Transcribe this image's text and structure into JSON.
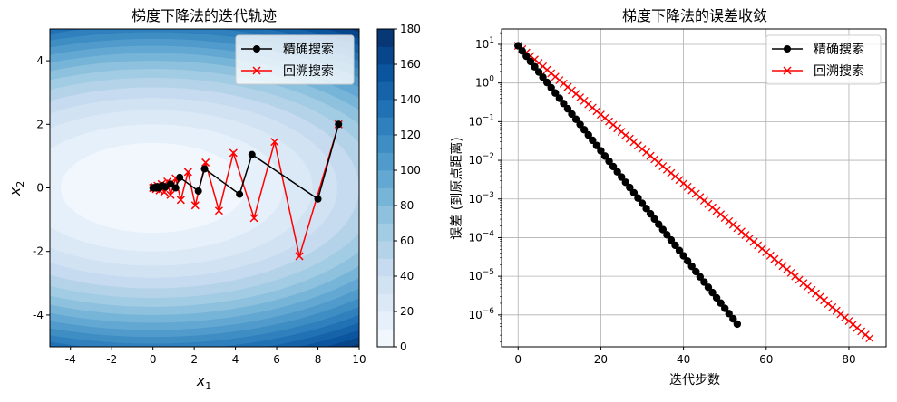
{
  "chart_data": [
    {
      "type": "contour",
      "title": "梯度下降法的迭代轨迹",
      "xlabel": "x",
      "xlabel_sub": "1",
      "ylabel": "x",
      "ylabel_sub": "2",
      "xlim": [
        -5,
        10
      ],
      "ylim": [
        -5,
        5
      ],
      "xticks": [
        "-4",
        "-2",
        "0",
        "2",
        "4",
        "6",
        "8",
        "10"
      ],
      "xtick_values": [
        -4,
        -2,
        0,
        2,
        4,
        6,
        8,
        10
      ],
      "yticks": [
        "-4",
        "-2",
        "0",
        "2",
        "4"
      ],
      "ytick_values": [
        -4,
        -2,
        0,
        2,
        4
      ],
      "colorbar": {
        "ticks": [
          "0",
          "20",
          "40",
          "60",
          "80",
          "100",
          "120",
          "140",
          "160",
          "180"
        ],
        "tick_values": [
          0,
          20,
          40,
          60,
          80,
          100,
          120,
          140,
          160,
          180
        ],
        "max": 180,
        "levels": 18,
        "colormap": "Blues"
      },
      "legend_position": "top-right",
      "series": [
        {
          "name": "精确搜索",
          "color": "#000000",
          "marker": "circle",
          "points": [
            [
              9.0,
              2.0
            ],
            [
              8.0,
              -0.35
            ],
            [
              4.8,
              1.05
            ],
            [
              4.2,
              -0.2
            ],
            [
              2.5,
              0.6
            ],
            [
              2.2,
              -0.1
            ],
            [
              1.3,
              0.33
            ],
            [
              1.1,
              0.0
            ],
            [
              0.85,
              0.12
            ],
            [
              0.6,
              0.03
            ],
            [
              0.45,
              0.07
            ],
            [
              0.3,
              0.0
            ],
            [
              0.2,
              0.04
            ],
            [
              0.12,
              0.0
            ],
            [
              0.05,
              0.01
            ],
            [
              0.0,
              0.0
            ]
          ]
        },
        {
          "name": "回溯搜索",
          "color": "#ff0000",
          "marker": "x",
          "points": [
            [
              9.0,
              2.0
            ],
            [
              7.1,
              -2.15
            ],
            [
              5.9,
              1.45
            ],
            [
              4.9,
              -0.95
            ],
            [
              3.9,
              1.1
            ],
            [
              3.2,
              -0.72
            ],
            [
              2.55,
              0.8
            ],
            [
              2.05,
              -0.55
            ],
            [
              1.7,
              0.5
            ],
            [
              1.35,
              -0.38
            ],
            [
              1.1,
              0.3
            ],
            [
              0.85,
              -0.22
            ],
            [
              0.7,
              0.2
            ],
            [
              0.55,
              -0.13
            ],
            [
              0.42,
              0.12
            ],
            [
              0.32,
              -0.08
            ],
            [
              0.22,
              0.07
            ],
            [
              0.15,
              -0.04
            ],
            [
              0.08,
              0.03
            ],
            [
              0.03,
              0.0
            ],
            [
              0.0,
              0.0
            ]
          ]
        }
      ]
    },
    {
      "type": "line",
      "title": "梯度下降法的误差收敛",
      "xlabel": "迭代步数",
      "ylabel": "误差 (到原点距离)",
      "yscale": "log",
      "xlim": [
        -4,
        89
      ],
      "ylim": [
        1.5e-07,
        25
      ],
      "xticks": [
        "0",
        "20",
        "40",
        "60",
        "80"
      ],
      "xtick_values": [
        0,
        20,
        40,
        60,
        80
      ],
      "yticks": [
        {
          "base": "10",
          "exp": "1",
          "value": 10
        },
        {
          "base": "10",
          "exp": "0",
          "value": 1
        },
        {
          "base": "10",
          "exp": "−1",
          "value": 0.1
        },
        {
          "base": "10",
          "exp": "−2",
          "value": 0.01
        },
        {
          "base": "10",
          "exp": "−3",
          "value": 0.001
        },
        {
          "base": "10",
          "exp": "−4",
          "value": 0.0001
        },
        {
          "base": "10",
          "exp": "−5",
          "value": 1e-05
        },
        {
          "base": "10",
          "exp": "−6",
          "value": 1e-06
        }
      ],
      "grid": true,
      "legend_position": "top-right",
      "series": [
        {
          "name": "精确搜索",
          "color": "#000000",
          "marker": "circle",
          "x_start": 0,
          "x_end": 53,
          "y_start": 9.2,
          "y_end": 5.8e-07
        },
        {
          "name": "回溯搜索",
          "color": "#ff0000",
          "marker": "x",
          "x_start": 0,
          "x_end": 85,
          "y_start": 9.2,
          "y_end": 2.5e-07
        }
      ]
    }
  ]
}
